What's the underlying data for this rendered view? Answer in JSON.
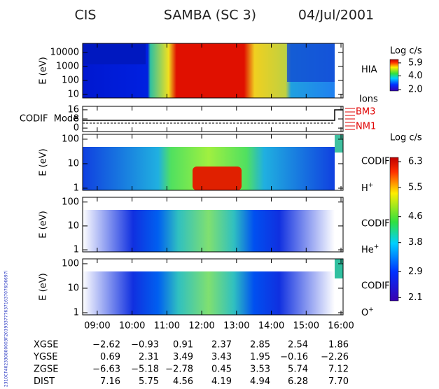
{
  "header": {
    "instrument": "CIS",
    "title": "SAMBA (SC 3)",
    "date": "04/Jul/2001"
  },
  "side_id": "2310CF402330800003F2039337776371637076D6697l",
  "xaxis": {
    "xlim": [
      8.58,
      16.06
    ],
    "xticks": [
      {
        "value": 9,
        "label": "09:00"
      },
      {
        "value": 10,
        "label": "10:00"
      },
      {
        "value": 11,
        "label": "11:00"
      },
      {
        "value": 12,
        "label": "12:00"
      },
      {
        "value": 13,
        "label": "13:00"
      },
      {
        "value": 14,
        "label": "14:00"
      },
      {
        "value": 15,
        "label": "15:00"
      },
      {
        "value": 16,
        "label": "16:00"
      }
    ]
  },
  "panels": [
    {
      "ylabel": "E (eV)",
      "log": true,
      "ylim": [
        5.6,
        44700
      ],
      "yticks": [
        10,
        100,
        1000,
        10000
      ],
      "right_label": "HIA",
      "bottom_label": "Ions"
    },
    {
      "ylabel": "CODIF  Mode",
      "log": false,
      "ylim": [
        -3,
        19
      ],
      "yticks": [
        0,
        8,
        16
      ],
      "mode_labels": [
        "BM3",
        "NM1"
      ]
    },
    {
      "ylabel": "E (eV)",
      "log": true,
      "ylim": [
        0.82,
        158
      ],
      "yticks": [
        1,
        10,
        100
      ],
      "right_label": "CODIF",
      "species": {
        "base": "H",
        "charge": "+"
      }
    },
    {
      "ylabel": "E (eV)",
      "log": true,
      "ylim": [
        0.82,
        158
      ],
      "yticks": [
        1,
        10,
        100
      ],
      "right_label": "CODIF",
      "species": {
        "base": "He",
        "charge": "+"
      }
    },
    {
      "ylabel": "E (eV)",
      "log": true,
      "ylim": [
        0.82,
        158
      ],
      "yticks": [
        1,
        10,
        100
      ],
      "right_label": "CODIF",
      "species": {
        "base": "O",
        "charge": "+"
      }
    }
  ],
  "colorbars": [
    {
      "label": "Log c/s",
      "ylim": [
        1.8,
        6.4
      ],
      "yticks": [
        {
          "value": 2,
          "label": "2.0"
        },
        {
          "value": 4,
          "label": "4.0"
        },
        5.9
      ]
    },
    {
      "label": "Log c/s",
      "ylim": [
        2.0,
        6.43
      ],
      "yticks": [
        2.1,
        2.9,
        3.8,
        4.6,
        5.5,
        6.3
      ]
    }
  ],
  "ephemeris": {
    "rows": [
      {
        "label": "XGSE",
        "values": [
          "−2.62",
          "−0.93",
          "0.91",
          "2.37",
          "2.85",
          "2.54",
          "1.86"
        ]
      },
      {
        "label": "YGSE",
        "values": [
          "0.69",
          "2.31",
          "3.49",
          "3.43",
          "1.95",
          "−0.16",
          "−2.26"
        ]
      },
      {
        "label": "ZGSE",
        "values": [
          "−6.63",
          "−5.18",
          "−2.78",
          "0.45",
          "3.53",
          "5.74",
          "7.12"
        ]
      },
      {
        "label": "DIST",
        "values": [
          "7.16",
          "5.75",
          "4.56",
          "4.19",
          "4.94",
          "6.28",
          "7.70"
        ]
      }
    ]
  }
}
